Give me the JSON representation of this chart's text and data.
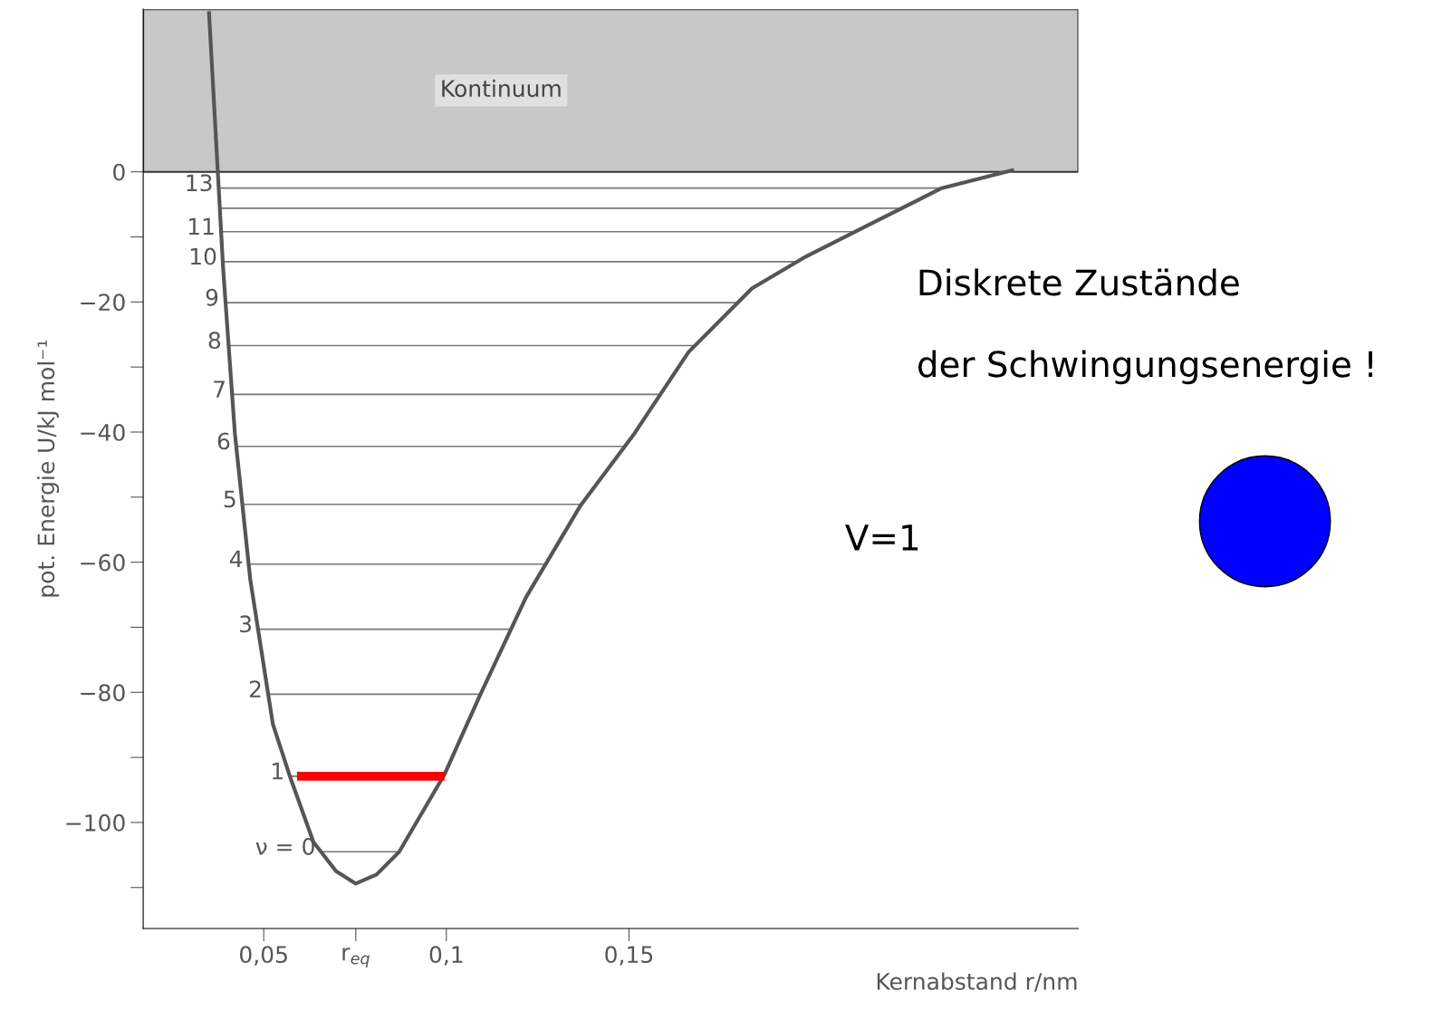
{
  "chart_data": {
    "type": "line",
    "xlabel": "Kernabstand r/nm",
    "ylabel": "pot. Energie U/kJ mol⁻¹",
    "xlim": [
      0.017,
      0.273
    ],
    "ylim": [
      -116.3,
      25
    ],
    "xticks": [
      {
        "value": 0.05,
        "label": "0,05"
      },
      {
        "value": 0.0752,
        "label": "r$_{eq}$"
      },
      {
        "value": 0.1,
        "label": "0,1"
      },
      {
        "value": 0.15,
        "label": "0,15"
      }
    ],
    "yticks": [
      0,
      {
        "value": -10,
        "label": null
      },
      {
        "value": -20,
        "label": "−20"
      },
      {
        "value": -30,
        "label": null
      },
      {
        "value": -40,
        "label": "−40"
      },
      {
        "value": -50,
        "label": null
      },
      {
        "value": -60,
        "label": "−60"
      },
      {
        "value": -70,
        "label": null
      },
      {
        "value": -80,
        "label": "−80"
      },
      {
        "value": -90,
        "label": null
      },
      {
        "value": -100,
        "label": "−100"
      },
      {
        "value": -110,
        "label": null
      }
    ],
    "grid": false,
    "series": [
      {
        "color": "#555555",
        "x": [
          0.035,
          0.0389,
          0.0421,
          0.0463,
          0.0525,
          0.0574,
          0.0636,
          0.0698,
          0.0752,
          0.0809,
          0.0871,
          0.0995,
          0.109,
          0.1218,
          0.1366,
          0.1515,
          0.1663,
          0.1837,
          0.1985,
          0.2158,
          0.2356,
          0.2554
        ],
        "values": [
          24.7,
          -15,
          -40.2,
          -62.6,
          -84.9,
          -93.3,
          -103,
          -107.5,
          -109.4,
          -108,
          -104.5,
          -92.6,
          -80.7,
          -65.4,
          -51.4,
          -40.2,
          -27.7,
          -17.9,
          -13,
          -8.1,
          -2.5,
          0.3
        ]
      },
      {
        "color": "#ff0000",
        "x": [
          0.0591,
          0.0995
        ],
        "values": [
          -92.9,
          -92.9
        ]
      }
    ],
    "ref_lines": [
      {
        "axis": "y",
        "value": -104.5
      },
      {
        "axis": "y",
        "value": -92.9
      },
      {
        "axis": "y",
        "value": -80.3
      },
      {
        "axis": "y",
        "value": -70.3
      },
      {
        "axis": "y",
        "value": -60.3
      },
      {
        "axis": "y",
        "value": -51.1
      },
      {
        "axis": "y",
        "value": -42.2
      },
      {
        "axis": "y",
        "value": -34.2
      },
      {
        "axis": "y",
        "value": -26.7
      },
      {
        "axis": "y",
        "value": -20.1
      },
      {
        "axis": "y",
        "value": -13.8
      },
      {
        "axis": "y",
        "value": -9.2
      },
      {
        "axis": "y",
        "value": -5.6
      },
      {
        "axis": "y",
        "value": -2.5
      }
    ],
    "bands": [
      {
        "axis": "y",
        "from": 0,
        "to": 25,
        "label": "Kontinuum",
        "color": "#c8c8c8"
      }
    ],
    "annotations": [
      "Diskrete Zustände",
      "der Schwingungsenergie !",
      "V=1",
      {
        "text": "ν = 0",
        "x": 0.0657,
        "y": -104.5
      },
      {
        "text": "1",
        "x": 0.0572,
        "y": -92.9
      },
      {
        "text": "2",
        "x": 0.0512,
        "y": -80.3
      },
      {
        "text": "3",
        "x": 0.0485,
        "y": -70.3
      },
      {
        "text": "4",
        "x": 0.0459,
        "y": -60.3
      },
      {
        "text": "5",
        "x": 0.0442,
        "y": -51.1
      },
      {
        "text": "6",
        "x": 0.0425,
        "y": -42.2
      },
      {
        "text": "7",
        "x": 0.0413,
        "y": -34.2
      },
      {
        "text": "8",
        "x": 0.04,
        "y": -26.7
      },
      {
        "text": "9",
        "x": 0.0393,
        "y": -20.1
      },
      {
        "text": "10",
        "x": 0.0388,
        "y": -13.8
      },
      {
        "text": "11",
        "x": 0.0383,
        "y": -9.2
      },
      {
        "text": "13",
        "x": 0.0377,
        "y": -2.5
      }
    ]
  }
}
